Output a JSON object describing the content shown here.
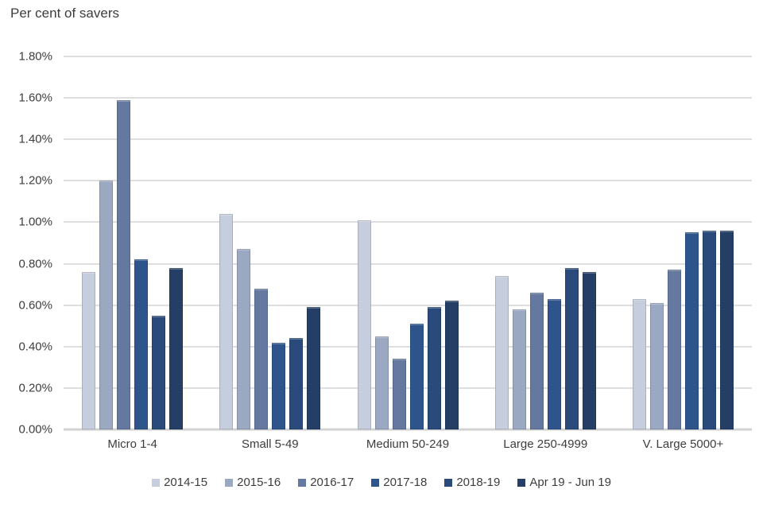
{
  "chart_data": {
    "type": "bar",
    "title": "Per cent of savers",
    "xlabel": "",
    "ylabel": "Per cent of savers",
    "ylim": [
      0,
      1.8
    ],
    "grid": "horizontal",
    "legend_position": "bottom-center",
    "y_tick_labels": [
      "0.00%",
      "0.20%",
      "0.40%",
      "0.60%",
      "0.80%",
      "1.00%",
      "1.20%",
      "1.40%",
      "1.60%",
      "1.80%"
    ],
    "categories": [
      "Micro 1-4",
      "Small 5-49",
      "Medium 50-249",
      "Large 250-4999",
      "V. Large 5000+"
    ],
    "series": [
      {
        "name": "2014-15",
        "color": "#c6cddc",
        "values": [
          0.76,
          1.04,
          1.01,
          0.74,
          0.63
        ]
      },
      {
        "name": "2015-16",
        "color": "#9ba8c2",
        "values": [
          1.2,
          0.87,
          0.45,
          0.58,
          0.61
        ]
      },
      {
        "name": "2016-17",
        "color": "#65789f",
        "values": [
          1.59,
          0.68,
          0.34,
          0.66,
          0.77
        ]
      },
      {
        "name": "2017-18",
        "color": "#2e548c",
        "values": [
          0.82,
          0.42,
          0.51,
          0.63,
          0.95
        ]
      },
      {
        "name": "2018-19",
        "color": "#294a7a",
        "values": [
          0.55,
          0.44,
          0.59,
          0.78,
          0.96
        ]
      },
      {
        "name": "Apr 19 - Jun 19",
        "color": "#243e66",
        "values": [
          0.78,
          0.59,
          0.62,
          0.76,
          0.96
        ]
      }
    ]
  }
}
